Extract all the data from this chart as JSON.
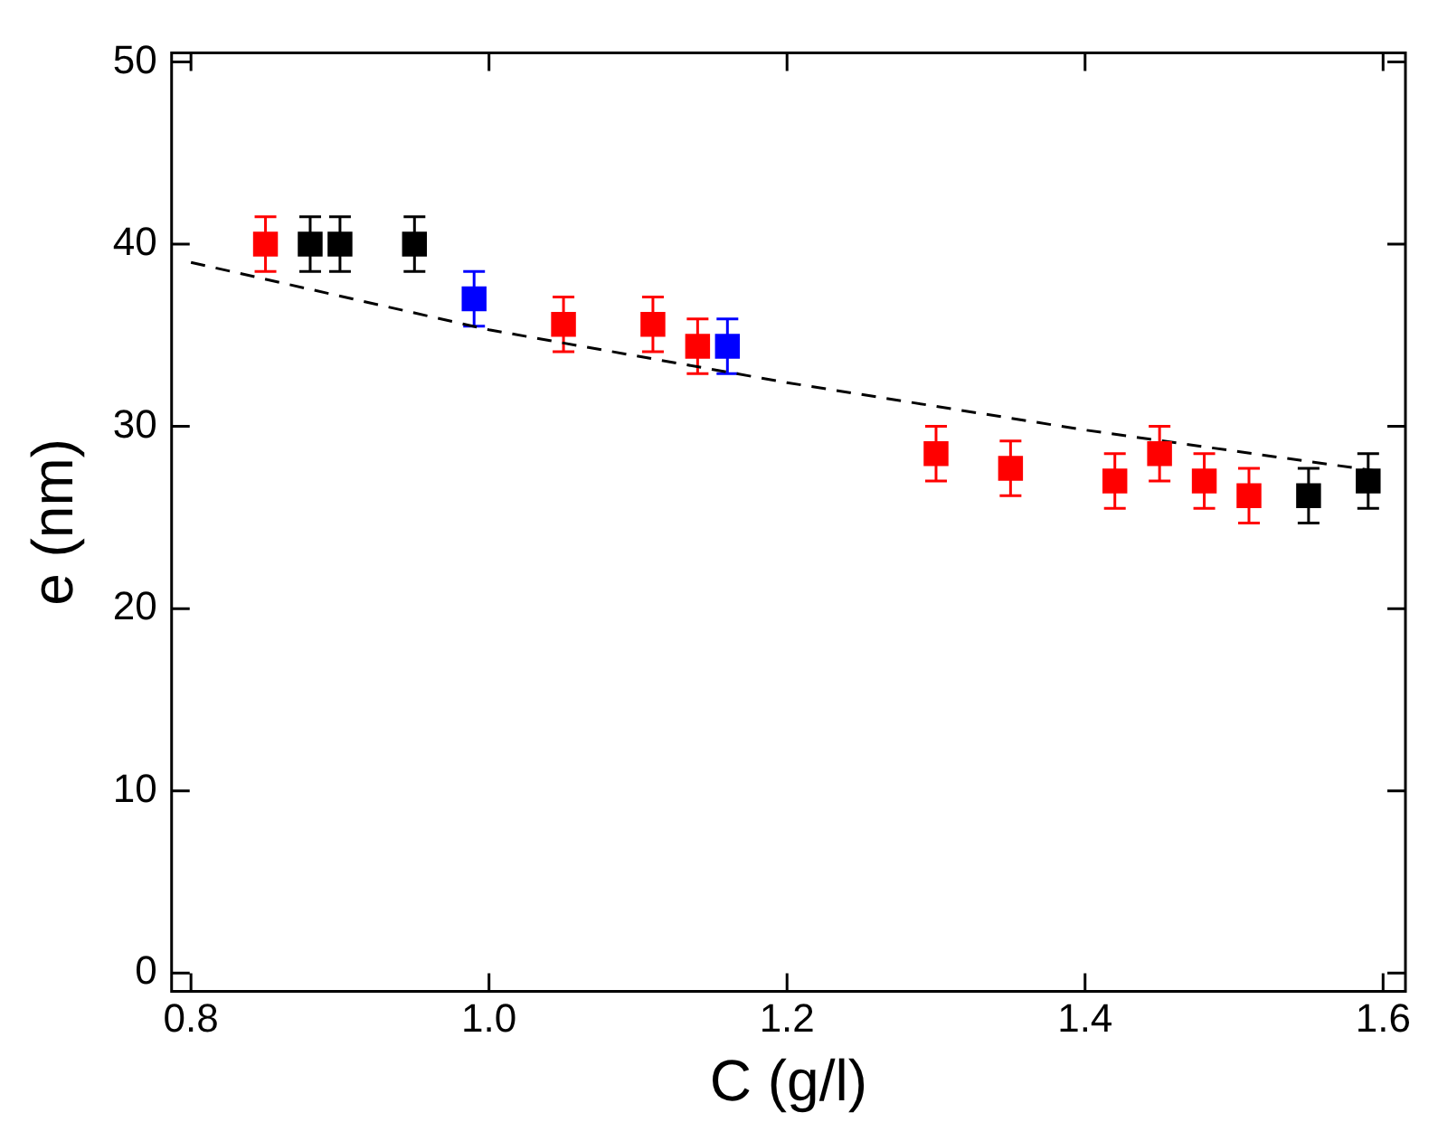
{
  "chart_data": {
    "type": "scatter",
    "xlabel": "C (g/l)",
    "ylabel": "e (nm)",
    "xlim": [
      0.787,
      1.615
    ],
    "ylim": [
      -1,
      50.5
    ],
    "xticks": [
      {
        "value": 0.8,
        "label": "0.8"
      },
      {
        "value": 1.0,
        "label": "1.0"
      },
      {
        "value": 1.2,
        "label": "1.2"
      },
      {
        "value": 1.4,
        "label": "1.4"
      },
      {
        "value": 1.6,
        "label": "1.6"
      }
    ],
    "yticks": [
      0,
      10,
      20,
      30,
      40,
      50
    ],
    "grid": false,
    "legend": false,
    "marker": "square",
    "series": [
      {
        "color": "#ff0000",
        "x": [
          0.85,
          1.05,
          1.11,
          1.14,
          1.3,
          1.35,
          1.42,
          1.45,
          1.48,
          1.51
        ],
        "values": [
          40,
          35.6,
          35.6,
          34.4,
          28.5,
          27.7,
          27,
          28.5,
          27,
          26.2
        ],
        "errors": [
          1.5,
          1.5,
          1.5,
          1.5,
          1.5,
          1.5,
          1.5,
          1.5,
          1.5,
          1.5
        ]
      },
      {
        "color": "#000000",
        "x": [
          0.88,
          0.9,
          0.95,
          1.55,
          1.59
        ],
        "values": [
          40,
          40,
          40,
          26.2,
          27
        ],
        "errors": [
          1.5,
          1.5,
          1.5,
          1.5,
          1.5
        ]
      },
      {
        "color": "#0000ff",
        "x": [
          0.99,
          1.16
        ],
        "values": [
          37,
          34.4
        ],
        "errors": [
          1.5,
          1.5
        ]
      },
      {
        "type": "line",
        "color": "#000000",
        "line_style": "dashed",
        "marker": "none",
        "x": [
          0.8,
          1.0,
          1.2,
          1.4,
          1.6
        ],
        "values": [
          39.0,
          35.3,
          32.4,
          29.8,
          27.5
        ]
      }
    ]
  }
}
